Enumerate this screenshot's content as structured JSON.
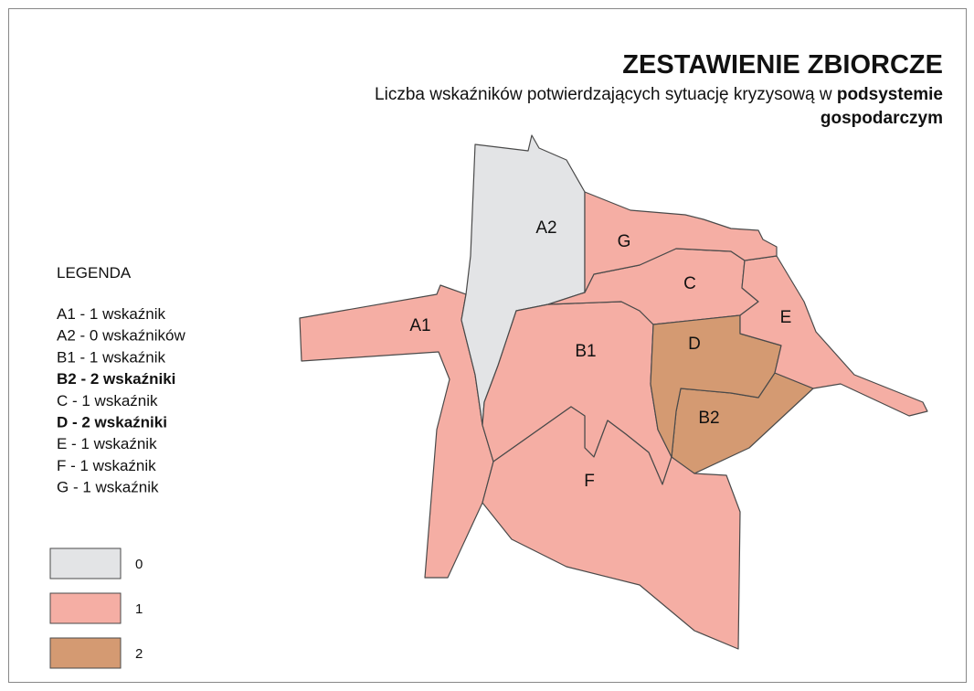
{
  "title": "ZESTAWIENIE ZBIORCZE",
  "subtitle": [
    "Liczba wskaźników potwierdzających sytuację kryzysową w ",
    "podsystemie",
    "gospodarczym"
  ],
  "legend": {
    "heading": "LEGENDA",
    "items": [
      {
        "text": "A1 - 1 wskaźnik",
        "bold": false
      },
      {
        "text": "A2 - 0 wskaźników",
        "bold": false
      },
      {
        "text": "B1 - 1 wskaźnik",
        "bold": false
      },
      {
        "text": "B2 - 2 wskaźniki",
        "bold": true
      },
      {
        "text": "C - 1 wskaźnik",
        "bold": false
      },
      {
        "text": "D - 2 wskaźniki",
        "bold": true
      },
      {
        "text": "E - 1 wskaźnik",
        "bold": false
      },
      {
        "text": "F - 1 wskaźnik",
        "bold": false
      },
      {
        "text": "G - 1 wskaźnik",
        "bold": false
      }
    ],
    "classes": [
      {
        "value": 0,
        "color": "#e3e4e6"
      },
      {
        "value": 1,
        "color": "#f5aea4"
      },
      {
        "value": 2,
        "color": "#d49a72"
      }
    ]
  },
  "regions": [
    {
      "label": "A1",
      "value": 1
    },
    {
      "label": "A2",
      "value": 0
    },
    {
      "label": "B1",
      "value": 1
    },
    {
      "label": "B2",
      "value": 2
    },
    {
      "label": "C",
      "value": 1
    },
    {
      "label": "D",
      "value": 2
    },
    {
      "label": "E",
      "value": 1
    },
    {
      "label": "F",
      "value": 1
    },
    {
      "label": "G",
      "value": 1
    }
  ]
}
